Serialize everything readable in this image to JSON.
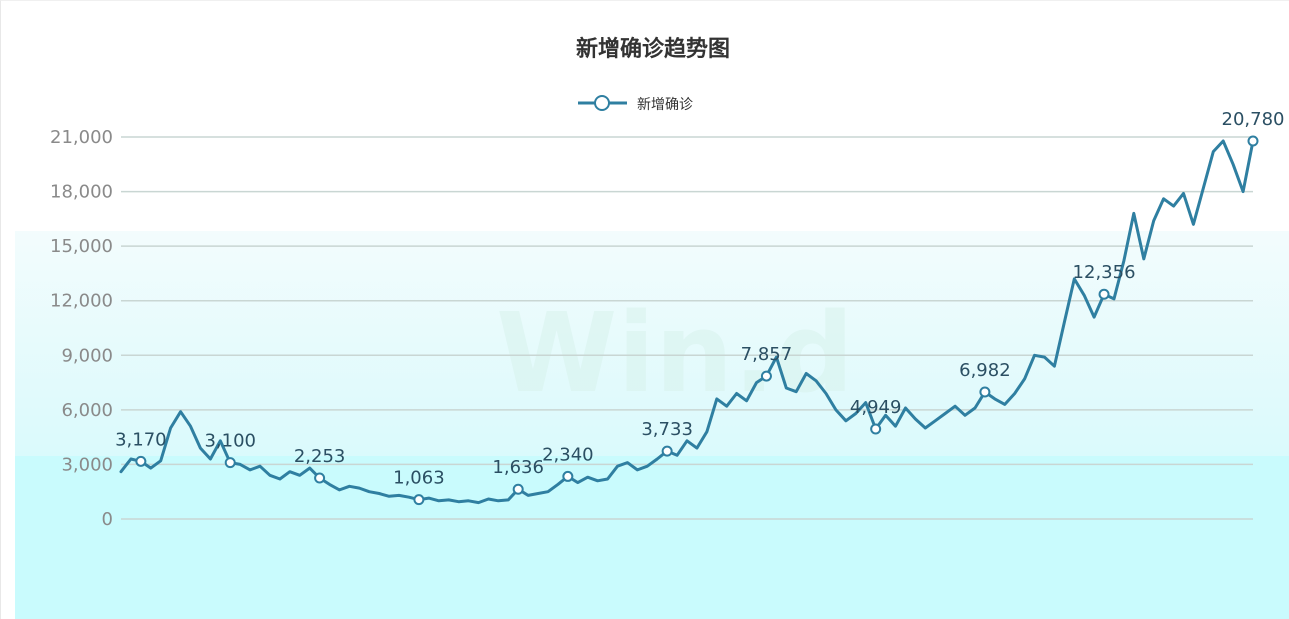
{
  "chart_data": {
    "type": "line",
    "title": "新增确诊趋势图",
    "legend": {
      "position": "top-center",
      "entries": [
        "新增确诊"
      ]
    },
    "ylim": [
      0,
      21000
    ],
    "yticks": [
      "0",
      "3,000",
      "6,000",
      "9,000",
      "12,000",
      "15,000",
      "18,000",
      "21,000"
    ],
    "grid": true,
    "xlabel": "",
    "ylabel": "",
    "series": [
      {
        "name": "新增确诊",
        "color": "#2f7fa1",
        "values": [
          2600,
          3300,
          3170,
          2800,
          3200,
          5000,
          5900,
          5100,
          3900,
          3300,
          4300,
          3100,
          3000,
          2700,
          2900,
          2400,
          2200,
          2600,
          2400,
          2800,
          2253,
          1900,
          1600,
          1800,
          1700,
          1500,
          1400,
          1250,
          1300,
          1200,
          1063,
          1150,
          1000,
          1050,
          950,
          1000,
          900,
          1100,
          1000,
          1050,
          1636,
          1300,
          1400,
          1500,
          1900,
          2340,
          2000,
          2300,
          2100,
          2200,
          2900,
          3100,
          2700,
          2900,
          3300,
          3733,
          3500,
          4300,
          3900,
          4800,
          6600,
          6200,
          6900,
          6500,
          7500,
          7857,
          8900,
          7200,
          7000,
          8000,
          7600,
          6900,
          6000,
          5400,
          5800,
          6400,
          4949,
          5700,
          5100,
          6100,
          5500,
          5000,
          5400,
          5800,
          6200,
          5700,
          6100,
          6982,
          6600,
          6300,
          6900,
          7700,
          9000,
          8900,
          8400,
          10800,
          13200,
          12300,
          11100,
          12356,
          12100,
          14200,
          16800,
          14300,
          16400,
          17600,
          17200,
          17900,
          16200,
          18200,
          20200,
          20780,
          19500,
          18000,
          20780
        ],
        "labels": [
          {
            "index": 2,
            "text": "3,170"
          },
          {
            "index": 11,
            "text": "3,100"
          },
          {
            "index": 20,
            "text": "2,253"
          },
          {
            "index": 30,
            "text": "1,063"
          },
          {
            "index": 40,
            "text": "1,636"
          },
          {
            "index": 45,
            "text": "2,340"
          },
          {
            "index": 55,
            "text": "3,733"
          },
          {
            "index": 65,
            "text": "7,857"
          },
          {
            "index": 76,
            "text": "4,949"
          },
          {
            "index": 87,
            "text": "6,982"
          },
          {
            "index": 99,
            "text": "12,356"
          },
          {
            "index": 114,
            "text": "20,780"
          }
        ]
      }
    ],
    "watermark": "Win.d"
  }
}
